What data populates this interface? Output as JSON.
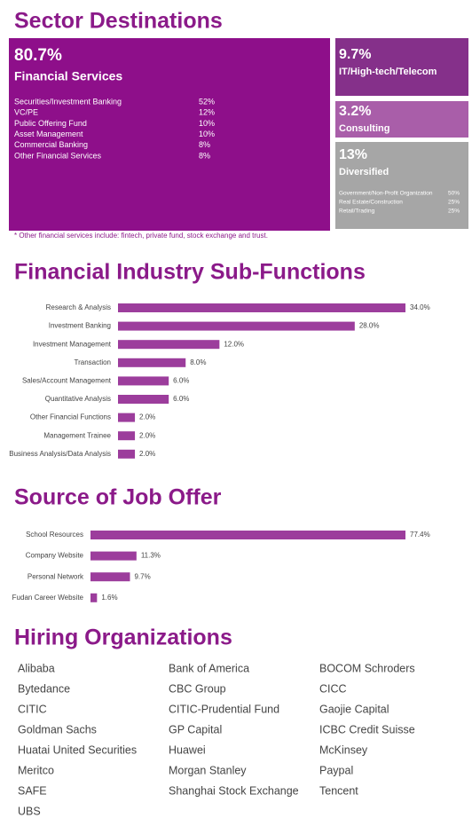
{
  "sector_destinations": {
    "title": "Sector Destinations",
    "main": {
      "percent": "80.7%",
      "label": "Financial Services",
      "items": [
        {
          "name": "Securities/Investment Banking",
          "share": "52%"
        },
        {
          "name": "VC/PE",
          "share": "12%"
        },
        {
          "name": "Public Offering Fund",
          "share": "10%"
        },
        {
          "name": "Asset Management",
          "share": "10%"
        },
        {
          "name": "Commercial Banking",
          "share": "8%"
        },
        {
          "name": "Other Financial Services",
          "share": "8%"
        }
      ]
    },
    "others": [
      {
        "percent": "9.7%",
        "label": "IT/High-tech/Telecom"
      },
      {
        "percent": "3.2%",
        "label": "Consulting"
      },
      {
        "percent": "13%",
        "label": "Diversified",
        "items": [
          {
            "name": "Government/Non-Profit Organization",
            "share": "50%"
          },
          {
            "name": "Real Estate/Construction",
            "share": "25%"
          },
          {
            "name": "Retail/Trading",
            "share": "25%"
          }
        ]
      }
    ],
    "footnote": "* Other financial services include: fintech, private fund, stock exchange and trust."
  },
  "chart_data": [
    {
      "type": "bar",
      "orientation": "horizontal",
      "title": "Financial Industry Sub-Functions",
      "color": "#9c3d9c",
      "categories": [
        "Research & Analysis",
        "Investment Banking",
        "Investment Management",
        "Transaction",
        "Sales/Account Management",
        "Quantitative Analysis",
        "Other Financial Functions",
        "Management Trainee",
        "Business Analysis/Data Analysis"
      ],
      "values": [
        34,
        28,
        12,
        8,
        6,
        6,
        2,
        2,
        2
      ],
      "value_labels": [
        "34.0%",
        "28.0%",
        "12.0%",
        "8.0%",
        "6.0%",
        "6.0%",
        "2.0%",
        "2.0%",
        "2.0%"
      ]
    },
    {
      "type": "bar",
      "orientation": "horizontal",
      "title": "Source of Job Offer",
      "color": "#9c3d9c",
      "categories": [
        "School Resources",
        "Company Website",
        "Personal Network",
        "Fudan Career Website"
      ],
      "values": [
        77.4,
        11.3,
        9.7,
        1.6
      ],
      "value_labels": [
        "77.4%",
        "11.3%",
        "9.7%",
        "1.6%"
      ]
    }
  ],
  "hiring_organizations": {
    "title": "Hiring Organizations",
    "names": [
      "Alibaba",
      "Bank of America",
      "BOCOM Schroders",
      "Bytedance",
      "CBC Group",
      "CICC",
      "CITIC",
      "CITIC-Prudential Fund",
      "Gaojie Capital",
      "Goldman Sachs",
      "GP Capital",
      "ICBC Credit Suisse",
      "Huatai United Securities",
      "Huawei",
      "McKinsey",
      "Meritco",
      "Morgan Stanley",
      "Paypal",
      "SAFE",
      "Shanghai Stock Exchange",
      "Tencent",
      "UBS"
    ]
  }
}
